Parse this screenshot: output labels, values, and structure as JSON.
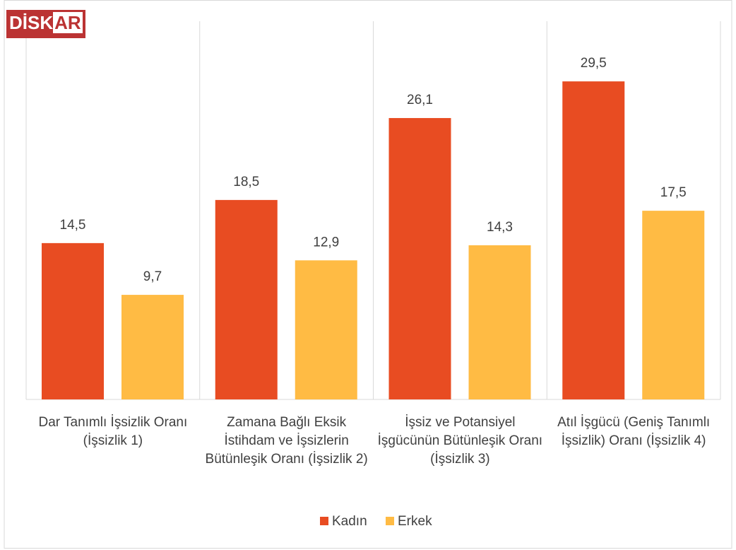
{
  "chart_data": {
    "type": "bar",
    "logo": {
      "main": "DİSK",
      "accent": "AR"
    },
    "categories": [
      "Dar Tanımlı İşsizlik Oranı (İşsizlik 1)",
      "Zamana Bağlı Eksik İstihdam ve İşsizlerin Bütünleşik Oranı (İşsizlik 2)",
      "İşsiz ve Potansiyel İşgücünün Bütünleşik Oranı (İşsizlik 3)",
      "Atıl İşgücü (Geniş Tanımlı İşsizlik) Oranı (İşsizlik 4)"
    ],
    "series": [
      {
        "name": "Kadın",
        "color": "#E84C22",
        "values": [
          14.5,
          18.5,
          26.1,
          29.5
        ],
        "value_labels": [
          "14,5",
          "18,5",
          "26,1",
          "29,5"
        ]
      },
      {
        "name": "Erkek",
        "color": "#FFBB44",
        "values": [
          9.7,
          12.9,
          14.3,
          17.5
        ],
        "value_labels": [
          "9,7",
          "12,9",
          "14,3",
          "17,5"
        ]
      }
    ],
    "ylim": [
      0,
      30
    ]
  }
}
